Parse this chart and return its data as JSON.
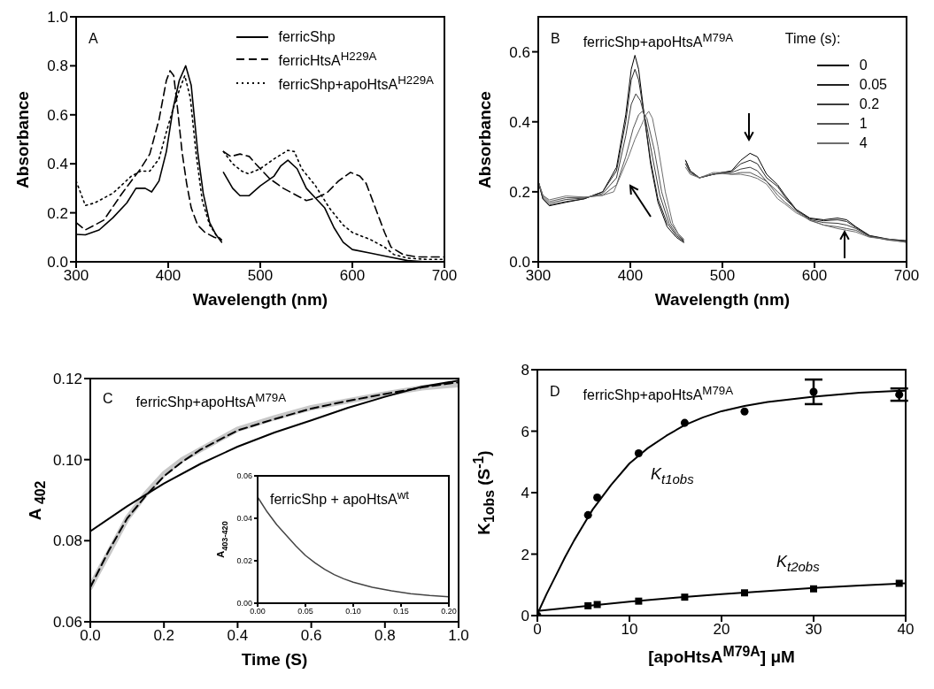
{
  "chart_data": [
    {
      "type": "line",
      "annotations": [
        "A"
      ],
      "xlabel": "Wavelength  (nm)",
      "ylabel": "Absorbance",
      "xlim": [
        300,
        700
      ],
      "xticks": [
        300,
        400,
        500,
        600,
        700
      ],
      "ylim": [
        0,
        1
      ],
      "yticks": [
        {
          "value": 0,
          "label": "0.0"
        },
        0.2,
        0.4,
        0.6,
        0.8,
        {
          "value": 1,
          "label": "1.0"
        }
      ],
      "legend": "top right",
      "marker": "none",
      "series": [
        {
          "name": "ferricShp",
          "color": "#000000",
          "line_style": "solid",
          "x": [
            300,
            310,
            325,
            340,
            355,
            365,
            375,
            382,
            390,
            398,
            405,
            412,
            419,
            425,
            432,
            438,
            445,
            452,
            458,
            459,
            460,
            470,
            478,
            488,
            500,
            515,
            522,
            530,
            540,
            550,
            560,
            570,
            580,
            590,
            600,
            620,
            640,
            660,
            680,
            700
          ],
          "values": [
            0.112,
            0.11,
            0.13,
            0.18,
            0.24,
            0.3,
            0.3,
            0.285,
            0.33,
            0.45,
            0.62,
            0.74,
            0.8,
            0.72,
            0.45,
            0.28,
            0.16,
            0.11,
            0.08,
            null,
            0.365,
            0.3,
            0.27,
            0.27,
            0.31,
            0.35,
            0.39,
            0.415,
            0.38,
            0.3,
            0.26,
            0.22,
            0.14,
            0.08,
            0.05,
            0.035,
            0.02,
            0.005,
            0,
            0
          ]
        },
        {
          "name": "ferricHtsA$^{H229A}$",
          "color": "#000000",
          "line_style": "dashed",
          "x": [
            300,
            310,
            330,
            350,
            370,
            380,
            390,
            398,
            402,
            406,
            410,
            415,
            420,
            425,
            432,
            440,
            450,
            458,
            459,
            460,
            468,
            478,
            488,
            495,
            510,
            525,
            540,
            550,
            560,
            572,
            585,
            598,
            608,
            615,
            625,
            635,
            642,
            655,
            670,
            685,
            700
          ],
          "values": [
            0.16,
            0.13,
            0.17,
            0.28,
            0.38,
            0.44,
            0.58,
            0.74,
            0.78,
            0.76,
            0.63,
            0.45,
            0.32,
            0.22,
            0.15,
            0.12,
            0.1,
            0.09,
            null,
            0.45,
            0.43,
            0.44,
            0.43,
            0.4,
            0.34,
            0.3,
            0.27,
            0.25,
            0.26,
            0.28,
            0.33,
            0.365,
            0.35,
            0.32,
            0.22,
            0.12,
            0.06,
            0.03,
            0.02,
            0.02,
            0.02
          ]
        },
        {
          "name": "ferricShp+apoHtsA$^{H229A}$",
          "color": "#000000",
          "line_style": "dotted",
          "x": [
            300,
            310,
            320,
            340,
            360,
            370,
            380,
            390,
            398,
            405,
            412,
            418,
            424,
            430,
            437,
            445,
            452,
            458,
            459,
            460,
            470,
            480,
            487,
            500,
            515,
            530,
            537,
            545,
            560,
            575,
            590,
            600,
            620,
            635,
            645,
            660,
            680,
            700
          ],
          "values": [
            0.33,
            0.23,
            0.24,
            0.28,
            0.35,
            0.37,
            0.37,
            0.42,
            0.53,
            0.62,
            0.7,
            0.76,
            0.67,
            0.45,
            0.25,
            0.15,
            0.11,
            0.09,
            null,
            0.45,
            0.4,
            0.37,
            0.36,
            0.38,
            0.42,
            0.455,
            0.45,
            0.38,
            0.31,
            0.22,
            0.15,
            0.12,
            0.09,
            0.06,
            0.03,
            0.015,
            0.01,
            0.01
          ]
        }
      ]
    },
    {
      "type": "line",
      "annotations": [
        "B",
        "ferricShp+apoHtsA$^{M79A}$"
      ],
      "xlabel": "Wavelength  (nm)",
      "ylabel": "Absorbance",
      "xlim": [
        300,
        700
      ],
      "xticks": [
        300,
        400,
        500,
        600,
        700
      ],
      "ylim": [
        0,
        0.7
      ],
      "yticks": [
        {
          "value": 0,
          "label": "0.0"
        },
        0.2,
        0.4,
        0.6
      ],
      "legend": "top right",
      "legend_title": "Time (s):",
      "marker": "none",
      "series": [
        {
          "name": "0",
          "color": "#000000",
          "x": [
            300,
            305,
            312,
            330,
            350,
            370,
            385,
            395,
            401,
            405,
            409,
            415,
            422,
            430,
            440,
            450,
            458,
            459,
            460,
            465,
            475,
            490,
            500,
            510,
            520,
            530,
            538,
            548,
            560,
            568,
            580,
            595,
            610,
            625,
            635,
            645,
            660,
            680,
            700
          ],
          "values": [
            0.23,
            0.18,
            0.16,
            0.17,
            0.18,
            0.2,
            0.27,
            0.42,
            0.55,
            0.59,
            0.55,
            0.42,
            0.28,
            0.17,
            0.1,
            0.07,
            0.055,
            null,
            0.29,
            0.26,
            0.24,
            0.25,
            0.255,
            0.26,
            0.29,
            0.31,
            0.3,
            0.25,
            0.22,
            0.19,
            0.15,
            0.125,
            0.12,
            0.125,
            0.12,
            0.1,
            0.075,
            0.065,
            0.06
          ]
        },
        {
          "name": "0.05",
          "color": "#222222",
          "x": [
            300,
            305,
            312,
            330,
            350,
            370,
            385,
            395,
            401,
            405,
            409,
            415,
            422,
            430,
            440,
            450,
            458,
            459,
            460,
            465,
            475,
            490,
            500,
            510,
            520,
            530,
            538,
            548,
            560,
            568,
            580,
            595,
            610,
            625,
            635,
            645,
            660,
            680,
            700
          ],
          "values": [
            0.23,
            0.18,
            0.162,
            0.172,
            0.18,
            0.2,
            0.26,
            0.4,
            0.52,
            0.55,
            0.52,
            0.42,
            0.29,
            0.18,
            0.11,
            0.075,
            0.058,
            null,
            0.29,
            0.26,
            0.24,
            0.25,
            0.255,
            0.258,
            0.28,
            0.29,
            0.28,
            0.24,
            0.215,
            0.185,
            0.148,
            0.123,
            0.117,
            0.12,
            0.115,
            0.098,
            0.074,
            0.064,
            0.06
          ]
        },
        {
          "name": "0.2",
          "color": "#3c3c3c",
          "x": [
            300,
            305,
            312,
            330,
            350,
            370,
            385,
            395,
            401,
            406,
            411,
            417,
            424,
            432,
            442,
            450,
            458,
            459,
            460,
            465,
            475,
            490,
            500,
            510,
            520,
            530,
            538,
            548,
            560,
            568,
            580,
            595,
            610,
            625,
            635,
            645,
            660,
            680,
            700
          ],
          "values": [
            0.23,
            0.185,
            0.167,
            0.178,
            0.182,
            0.195,
            0.24,
            0.36,
            0.45,
            0.48,
            0.46,
            0.4,
            0.3,
            0.19,
            0.11,
            0.08,
            0.06,
            null,
            0.28,
            0.255,
            0.24,
            0.25,
            0.255,
            0.255,
            0.265,
            0.27,
            0.26,
            0.23,
            0.2,
            0.18,
            0.15,
            0.12,
            0.112,
            0.11,
            0.105,
            0.095,
            0.073,
            0.063,
            0.058
          ]
        },
        {
          "name": "1",
          "color": "#555555",
          "x": [
            300,
            305,
            312,
            330,
            350,
            370,
            385,
            395,
            403,
            409,
            413,
            418,
            426,
            434,
            444,
            452,
            458,
            459,
            460,
            465,
            475,
            490,
            500,
            510,
            520,
            530,
            538,
            548,
            560,
            568,
            580,
            595,
            610,
            625,
            635,
            645,
            660,
            680,
            700
          ],
          "values": [
            0.23,
            0.19,
            0.172,
            0.183,
            0.184,
            0.19,
            0.22,
            0.3,
            0.38,
            0.42,
            0.43,
            0.41,
            0.32,
            0.2,
            0.11,
            0.08,
            0.063,
            null,
            0.28,
            0.255,
            0.24,
            0.25,
            0.252,
            0.25,
            0.255,
            0.255,
            0.245,
            0.23,
            0.19,
            0.17,
            0.145,
            0.118,
            0.105,
            0.1,
            0.095,
            0.09,
            0.072,
            0.062,
            0.056
          ]
        },
        {
          "name": "4",
          "color": "#6e6e6e",
          "x": [
            300,
            305,
            312,
            330,
            350,
            370,
            382,
            390,
            398,
            405,
            412,
            417,
            420,
            424,
            430,
            438,
            446,
            452,
            458,
            459,
            460,
            465,
            475,
            490,
            500,
            510,
            520,
            530,
            538,
            548,
            560,
            568,
            580,
            595,
            610,
            625,
            635,
            645,
            660,
            680,
            700
          ],
          "values": [
            0.23,
            0.19,
            0.177,
            0.188,
            0.185,
            0.19,
            0.2,
            0.25,
            0.3,
            0.35,
            0.39,
            0.42,
            0.43,
            0.41,
            0.33,
            0.2,
            0.11,
            0.08,
            0.065,
            null,
            0.27,
            0.25,
            0.24,
            0.255,
            0.255,
            0.25,
            0.25,
            0.245,
            0.238,
            0.222,
            0.18,
            0.165,
            0.14,
            0.12,
            0.105,
            0.095,
            0.09,
            0.085,
            0.07,
            0.065,
            0.055
          ]
        }
      ]
    },
    {
      "type": "line",
      "annotations": [
        "C",
        "ferricShp+apoHtsA$^{M79A}$"
      ],
      "xlabel": "Time (S)",
      "ylabel": "A $_{402}$",
      "xlim": [
        0,
        1
      ],
      "xticks": [
        {
          "value": 0,
          "label": "0.0"
        },
        0.2,
        0.4,
        0.6,
        0.8,
        {
          "value": 1,
          "label": "1.0"
        }
      ],
      "ylim": [
        0.06,
        0.12
      ],
      "yticks": [
        0.06,
        0.08,
        {
          "value": 0.1,
          "label": "0.10"
        },
        0.12
      ],
      "marker": "none",
      "series": [
        {
          "color": "#c8c8c8",
          "line_style": "solid",
          "x": [
            0,
            0.02,
            0.05,
            0.1,
            0.15,
            0.2,
            0.25,
            0.3,
            0.4,
            0.5,
            0.6,
            0.7,
            0.8,
            0.9,
            1
          ],
          "values": [
            0.0685,
            0.072,
            0.077,
            0.0855,
            0.0915,
            0.0965,
            0.1,
            0.1025,
            0.1075,
            0.1103,
            0.1128,
            0.1145,
            0.1162,
            0.1177,
            0.1185
          ]
        },
        {
          "color": "#000000",
          "line_style": "dashed",
          "x": [
            0,
            0.05,
            0.1,
            0.15,
            0.2,
            0.25,
            0.3,
            0.4,
            0.5,
            0.6,
            0.7,
            0.8,
            0.9,
            1
          ],
          "values": [
            0.0685,
            0.0775,
            0.0855,
            0.091,
            0.0959,
            0.0995,
            0.1025,
            0.1072,
            0.11,
            0.1126,
            0.1145,
            0.1162,
            0.1178,
            0.1191
          ]
        },
        {
          "color": "#000000",
          "line_style": "solid",
          "x": [
            0,
            0.1,
            0.2,
            0.3,
            0.4,
            0.5,
            0.6,
            0.7,
            0.8,
            0.9,
            1
          ],
          "values": [
            0.0823,
            0.0885,
            0.0941,
            0.099,
            0.1032,
            0.1067,
            0.1097,
            0.1128,
            0.1155,
            0.118,
            0.1195
          ]
        }
      ]
    },
    {
      "type": "line",
      "annotations": [
        "ferricShp + apoHtsA$^{wt}$"
      ],
      "ylabel": "A$_{403-420}$",
      "xlim": [
        0,
        0.2
      ],
      "xticks": [
        {
          "value": 0,
          "label": "0.00"
        },
        {
          "value": 0.05,
          "label": "0.05"
        },
        {
          "value": 0.1,
          "label": "0.10"
        },
        {
          "value": 0.15,
          "label": "0.15"
        },
        {
          "value": 0.2,
          "label": "0.20"
        }
      ],
      "ylim": [
        0,
        0.06
      ],
      "yticks": [
        {
          "value": 0,
          "label": "0.00"
        },
        {
          "value": 0.02,
          "label": "0.02"
        },
        {
          "value": 0.04,
          "label": "0.04"
        },
        {
          "value": 0.06,
          "label": "0.06"
        }
      ],
      "marker": "none",
      "series": [
        {
          "color": "#444444",
          "x": [
            0,
            0.01,
            0.02,
            0.03,
            0.04,
            0.05,
            0.06,
            0.07,
            0.08,
            0.09,
            0.1,
            0.12,
            0.14,
            0.16,
            0.18,
            0.2
          ],
          "values": [
            0.05,
            0.043,
            0.037,
            0.032,
            0.027,
            0.0225,
            0.019,
            0.016,
            0.0135,
            0.0115,
            0.0099,
            0.0075,
            0.0058,
            0.0045,
            0.0036,
            0.003
          ]
        }
      ]
    },
    {
      "type": "scatter",
      "annotations": [
        "D",
        "ferricShp+apoHtsA$^{M79A}$",
        "K$_{t1obs}$",
        "K$_{t2obs}$"
      ],
      "xlabel": "[apoHtsA$^{M79A}$] μM",
      "ylabel": "K$_{1obs}$ (S$^{-1}$)",
      "xlim": [
        0,
        40
      ],
      "xticks": [
        0,
        10,
        20,
        30,
        40
      ],
      "ylim": [
        0,
        8
      ],
      "yticks": [
        0,
        2,
        4,
        6,
        8
      ],
      "series": [
        {
          "type": "line",
          "color": "#000000",
          "marker": "none",
          "x": [
            0,
            1,
            2,
            3,
            4,
            5,
            6,
            8,
            10,
            12,
            14,
            16,
            18,
            20,
            22.5,
            25,
            30,
            35,
            40
          ],
          "values": [
            0.05,
            0.7,
            1.3,
            1.9,
            2.45,
            2.95,
            3.45,
            4.25,
            4.95,
            5.45,
            5.85,
            6.2,
            6.45,
            6.65,
            6.82,
            6.95,
            7.12,
            7.25,
            7.32
          ]
        },
        {
          "type": "line",
          "color": "#000000",
          "marker": "none",
          "x": [
            0,
            5,
            10,
            15,
            20,
            25,
            30,
            35,
            40
          ],
          "values": [
            0.15,
            0.3,
            0.45,
            0.58,
            0.7,
            0.8,
            0.9,
            0.98,
            1.05
          ]
        },
        {
          "color": "#000000",
          "marker": "circle",
          "x": [
            0,
            5.5,
            6.5,
            11,
            16,
            22.5,
            30,
            39.3
          ],
          "values": [
            0,
            3.27,
            3.84,
            5.28,
            6.27,
            6.64,
            7.28,
            7.19
          ],
          "errors": [
            null,
            null,
            null,
            null,
            null,
            null,
            0.4,
            0.2
          ]
        },
        {
          "color": "#000000",
          "marker": "square",
          "x": [
            5.5,
            6.5,
            11,
            16,
            22.5,
            30,
            39.3
          ],
          "values": [
            0.32,
            0.36,
            0.47,
            0.6,
            0.74,
            0.87,
            1.05
          ]
        }
      ]
    }
  ]
}
